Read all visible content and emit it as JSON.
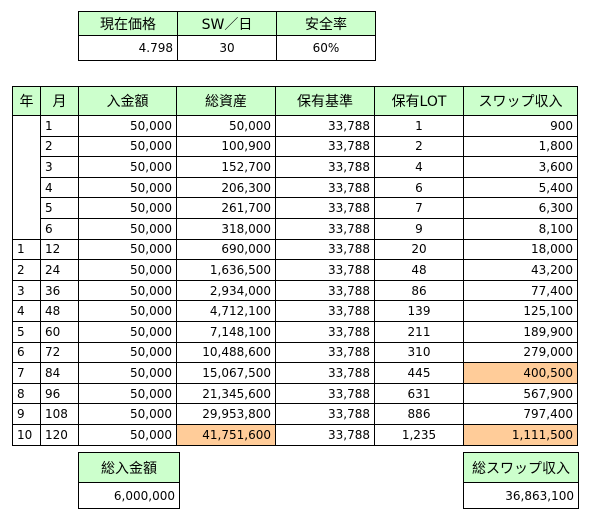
{
  "summary": {
    "headers": [
      "現在価格",
      "SW／日",
      "安全率"
    ],
    "values": [
      "4.798",
      "30",
      "60%"
    ]
  },
  "table": {
    "headers": [
      "年",
      "月",
      "入金額",
      "総資産",
      "保有基準",
      "保有LOT",
      "スワップ収入"
    ],
    "rows": [
      {
        "year": "",
        "month": "1",
        "deposit": "50,000",
        "assets": "50,000",
        "basis": "33,788",
        "lot": "1",
        "swap": "900"
      },
      {
        "year": "",
        "month": "2",
        "deposit": "50,000",
        "assets": "100,900",
        "basis": "33,788",
        "lot": "2",
        "swap": "1,800"
      },
      {
        "year": "",
        "month": "3",
        "deposit": "50,000",
        "assets": "152,700",
        "basis": "33,788",
        "lot": "4",
        "swap": "3,600"
      },
      {
        "year": "",
        "month": "4",
        "deposit": "50,000",
        "assets": "206,300",
        "basis": "33,788",
        "lot": "6",
        "swap": "5,400"
      },
      {
        "year": "",
        "month": "5",
        "deposit": "50,000",
        "assets": "261,700",
        "basis": "33,788",
        "lot": "7",
        "swap": "6,300"
      },
      {
        "year": "",
        "month": "6",
        "deposit": "50,000",
        "assets": "318,000",
        "basis": "33,788",
        "lot": "9",
        "swap": "8,100"
      },
      {
        "year": "1",
        "month": "12",
        "deposit": "50,000",
        "assets": "690,000",
        "basis": "33,788",
        "lot": "20",
        "swap": "18,000"
      },
      {
        "year": "2",
        "month": "24",
        "deposit": "50,000",
        "assets": "1,636,500",
        "basis": "33,788",
        "lot": "48",
        "swap": "43,200"
      },
      {
        "year": "3",
        "month": "36",
        "deposit": "50,000",
        "assets": "2,934,000",
        "basis": "33,788",
        "lot": "86",
        "swap": "77,400"
      },
      {
        "year": "4",
        "month": "48",
        "deposit": "50,000",
        "assets": "4,712,100",
        "basis": "33,788",
        "lot": "139",
        "swap": "125,100"
      },
      {
        "year": "5",
        "month": "60",
        "deposit": "50,000",
        "assets": "7,148,100",
        "basis": "33,788",
        "lot": "211",
        "swap": "189,900"
      },
      {
        "year": "6",
        "month": "72",
        "deposit": "50,000",
        "assets": "10,488,600",
        "basis": "33,788",
        "lot": "310",
        "swap": "279,000"
      },
      {
        "year": "7",
        "month": "84",
        "deposit": "50,000",
        "assets": "15,067,500",
        "basis": "33,788",
        "lot": "445",
        "swap": "400,500"
      },
      {
        "year": "8",
        "month": "96",
        "deposit": "50,000",
        "assets": "21,345,600",
        "basis": "33,788",
        "lot": "631",
        "swap": "567,900"
      },
      {
        "year": "9",
        "month": "108",
        "deposit": "50,000",
        "assets": "29,953,800",
        "basis": "33,788",
        "lot": "886",
        "swap": "797,400"
      },
      {
        "year": "10",
        "month": "120",
        "deposit": "50,000",
        "assets": "41,751,600",
        "basis": "33,788",
        "lot": "1,235",
        "swap": "1,111,500"
      }
    ],
    "highlight_color": "#ffcc99",
    "header_color": "#ccffcc"
  },
  "totals": {
    "deposit_label": "総入金額",
    "deposit_value": "6,000,000",
    "swap_label": "総スワップ収入",
    "swap_value": "36,863,100"
  }
}
